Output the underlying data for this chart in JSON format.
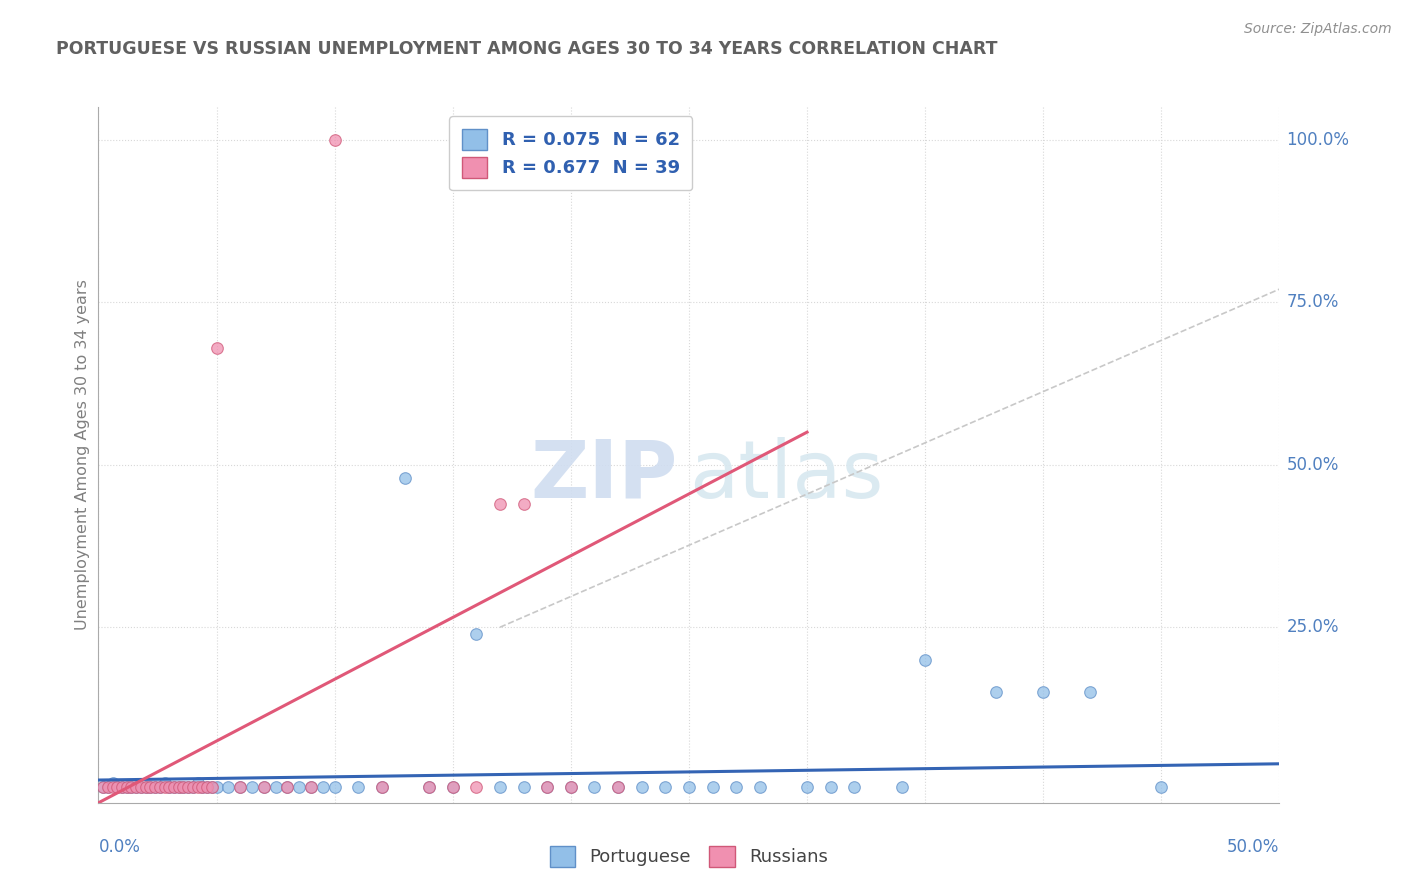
{
  "title": "PORTUGUESE VS RUSSIAN UNEMPLOYMENT AMONG AGES 30 TO 34 YEARS CORRELATION CHART",
  "source": "Source: ZipAtlas.com",
  "ylabel": "Unemployment Among Ages 30 to 34 years",
  "xlim": [
    0.0,
    0.5
  ],
  "ylim": [
    -0.02,
    1.05
  ],
  "ytick_values": [
    0.25,
    0.5,
    0.75,
    1.0
  ],
  "ytick_labels": [
    "25.0%",
    "50.0%",
    "75.0%",
    "100.0%"
  ],
  "legend_entries": [
    {
      "label": "R = 0.075  N = 62",
      "color": "#aac8e8"
    },
    {
      "label": "R = 0.677  N = 39",
      "color": "#f5b8c8"
    }
  ],
  "legend_bottom": [
    "Portuguese",
    "Russians"
  ],
  "portuguese_scatter": [
    [
      0.002,
      0.005
    ],
    [
      0.004,
      0.005
    ],
    [
      0.006,
      0.01
    ],
    [
      0.008,
      0.005
    ],
    [
      0.01,
      0.005
    ],
    [
      0.012,
      0.005
    ],
    [
      0.014,
      0.005
    ],
    [
      0.016,
      0.005
    ],
    [
      0.018,
      0.005
    ],
    [
      0.02,
      0.005
    ],
    [
      0.022,
      0.005
    ],
    [
      0.024,
      0.005
    ],
    [
      0.026,
      0.005
    ],
    [
      0.028,
      0.01
    ],
    [
      0.03,
      0.005
    ],
    [
      0.032,
      0.005
    ],
    [
      0.034,
      0.005
    ],
    [
      0.036,
      0.005
    ],
    [
      0.038,
      0.005
    ],
    [
      0.04,
      0.005
    ],
    [
      0.042,
      0.01
    ],
    [
      0.044,
      0.005
    ],
    [
      0.046,
      0.005
    ],
    [
      0.048,
      0.005
    ],
    [
      0.05,
      0.005
    ],
    [
      0.055,
      0.005
    ],
    [
      0.06,
      0.005
    ],
    [
      0.065,
      0.005
    ],
    [
      0.07,
      0.005
    ],
    [
      0.075,
      0.005
    ],
    [
      0.08,
      0.005
    ],
    [
      0.085,
      0.005
    ],
    [
      0.09,
      0.005
    ],
    [
      0.095,
      0.005
    ],
    [
      0.1,
      0.005
    ],
    [
      0.11,
      0.005
    ],
    [
      0.12,
      0.005
    ],
    [
      0.13,
      0.48
    ],
    [
      0.14,
      0.005
    ],
    [
      0.15,
      0.005
    ],
    [
      0.16,
      0.24
    ],
    [
      0.17,
      0.005
    ],
    [
      0.18,
      0.005
    ],
    [
      0.19,
      0.005
    ],
    [
      0.2,
      0.005
    ],
    [
      0.21,
      0.005
    ],
    [
      0.22,
      0.005
    ],
    [
      0.23,
      0.005
    ],
    [
      0.24,
      0.005
    ],
    [
      0.25,
      0.005
    ],
    [
      0.26,
      0.005
    ],
    [
      0.27,
      0.005
    ],
    [
      0.28,
      0.005
    ],
    [
      0.3,
      0.005
    ],
    [
      0.31,
      0.005
    ],
    [
      0.32,
      0.005
    ],
    [
      0.34,
      0.005
    ],
    [
      0.35,
      0.2
    ],
    [
      0.38,
      0.15
    ],
    [
      0.4,
      0.15
    ],
    [
      0.42,
      0.15
    ],
    [
      0.45,
      0.005
    ]
  ],
  "russians_scatter": [
    [
      0.002,
      0.005
    ],
    [
      0.004,
      0.005
    ],
    [
      0.006,
      0.005
    ],
    [
      0.008,
      0.005
    ],
    [
      0.01,
      0.005
    ],
    [
      0.012,
      0.005
    ],
    [
      0.014,
      0.005
    ],
    [
      0.016,
      0.005
    ],
    [
      0.018,
      0.005
    ],
    [
      0.02,
      0.005
    ],
    [
      0.022,
      0.005
    ],
    [
      0.024,
      0.005
    ],
    [
      0.026,
      0.005
    ],
    [
      0.028,
      0.005
    ],
    [
      0.03,
      0.005
    ],
    [
      0.032,
      0.005
    ],
    [
      0.034,
      0.005
    ],
    [
      0.036,
      0.005
    ],
    [
      0.038,
      0.005
    ],
    [
      0.04,
      0.005
    ],
    [
      0.042,
      0.005
    ],
    [
      0.044,
      0.005
    ],
    [
      0.046,
      0.005
    ],
    [
      0.048,
      0.005
    ],
    [
      0.05,
      0.68
    ],
    [
      0.06,
      0.005
    ],
    [
      0.07,
      0.005
    ],
    [
      0.08,
      0.005
    ],
    [
      0.09,
      0.005
    ],
    [
      0.1,
      1.0
    ],
    [
      0.12,
      0.005
    ],
    [
      0.14,
      0.005
    ],
    [
      0.15,
      0.005
    ],
    [
      0.16,
      0.005
    ],
    [
      0.17,
      0.44
    ],
    [
      0.18,
      0.44
    ],
    [
      0.19,
      0.005
    ],
    [
      0.2,
      0.005
    ],
    [
      0.22,
      0.005
    ]
  ],
  "blue_line": [
    [
      0.0,
      0.015
    ],
    [
      0.5,
      0.04
    ]
  ],
  "pink_line": [
    [
      0.0,
      -0.02
    ],
    [
      0.3,
      0.55
    ]
  ],
  "diag_line": [
    [
      0.17,
      0.25
    ],
    [
      0.5,
      0.77
    ]
  ],
  "blue_scatter_color": "#92bfe8",
  "blue_scatter_edge": "#6090c8",
  "pink_scatter_color": "#f090b0",
  "pink_scatter_edge": "#d05878",
  "blue_line_color": "#3464b4",
  "pink_line_color": "#e05878",
  "diag_line_color": "#c8c8c8",
  "background_color": "#ffffff",
  "grid_color": "#d8d8d8",
  "watermark_zip": "ZIP",
  "watermark_atlas": "atlas",
  "title_color": "#606060",
  "source_color": "#909090",
  "axis_label_color": "#5080c0",
  "ylabel_color": "#808080"
}
